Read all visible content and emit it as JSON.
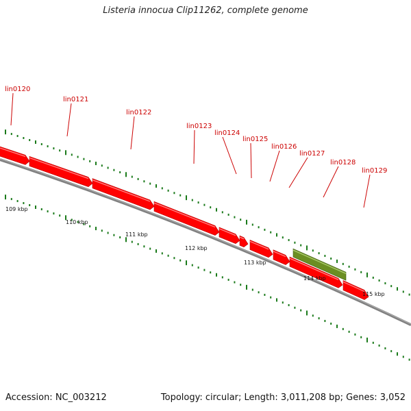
{
  "title": "Listeria innocua Clip11262, complete genome",
  "footer": {
    "accession": "Accession: NC_003212",
    "summary": "Topology: circular; Length: 3,011,208 bp; Genes: 3,052"
  },
  "colors": {
    "gene": "#ff0000",
    "gene_dark": "#b00000",
    "highlight": "#6b8e23",
    "backbone": "#808080",
    "tick": "#1a7a1a",
    "label": "#cc0000"
  },
  "genes": [
    {
      "name": "",
      "strand": "+"
    },
    {
      "name": "lin0120",
      "strand": "+"
    },
    {
      "name": "lin0121",
      "strand": "+"
    },
    {
      "name": "lin0122",
      "strand": "+"
    },
    {
      "name": "lin0123",
      "strand": "+"
    },
    {
      "name": "lin0124",
      "strand": "+"
    },
    {
      "name": "lin0125",
      "strand": "+"
    },
    {
      "name": "lin0126",
      "strand": "+"
    },
    {
      "name": "lin0127",
      "strand": "+"
    },
    {
      "name": "lin0128",
      "strand": "+"
    },
    {
      "name": "lin0129",
      "strand": "+"
    }
  ],
  "highlight_feature": {
    "label": "",
    "type": "highlighted region"
  },
  "scale_labels": [
    "109 kbp",
    "110 kbp",
    "111 kbp",
    "112 kbp",
    "113 kbp",
    "114 kbp",
    "115 kbp"
  ]
}
